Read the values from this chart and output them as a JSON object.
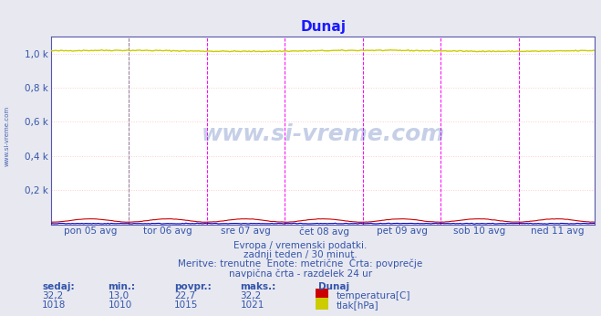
{
  "title": "Dunaj",
  "title_color": "#1a1aff",
  "bg_color": "#e8e8f0",
  "plot_bg_color": "#ffffff",
  "grid_color": "#ffcccc",
  "border_color": "#5555aa",
  "ylim": [
    0,
    1100
  ],
  "yticks": [
    200,
    400,
    600,
    800,
    1000
  ],
  "ytick_labels": [
    "0,2 k",
    "0,4 k",
    "0,6 k",
    "0,8 k",
    "1,0 k"
  ],
  "xtick_labels": [
    "pon 05 avg",
    "tor 06 avg",
    "sre 07 avg",
    "čet 08 avg",
    "pet 09 avg",
    "sob 10 avg",
    "ned 11 avg"
  ],
  "n_points": 336,
  "temp_color": "#cc0000",
  "pressure_color": "#cccc00",
  "humidity_color": "#0000cc",
  "vline_color": "#ff00ff",
  "watermark": "www.si-vreme.com",
  "subtitle1": "Evropa / vremenski podatki.",
  "subtitle2": "zadnji teden / 30 minut.",
  "subtitle3": "Meritve: trenutne  Enote: metrične  Črta: povprečje",
  "subtitle4": "navpična črta - razdelek 24 ur",
  "footer_color": "#3355aa",
  "legend_label1": "temperatura[C]",
  "legend_label2": "tlak[hPa]",
  "left_label": "www.si-vreme.com",
  "sidebar_color": "#3355aa",
  "sedaj_temp": "32,2",
  "min_temp": "13,0",
  "povpr_temp": "22,7",
  "maks_temp": "32,2",
  "sedaj_press": "1018",
  "min_press": "1010",
  "povpr_press": "1015",
  "maks_press": "1021"
}
